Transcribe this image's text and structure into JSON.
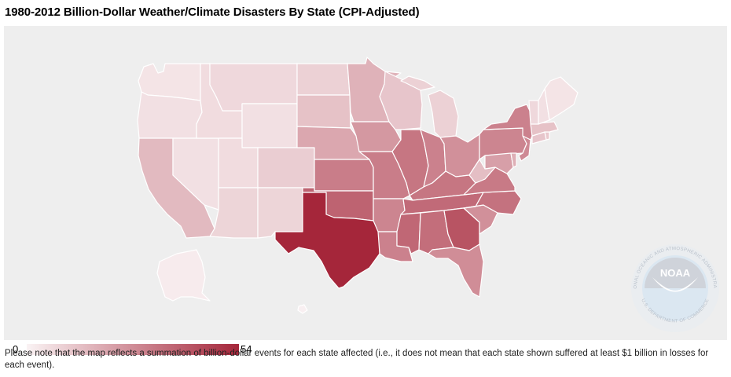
{
  "title": "1980-2012 Billion-Dollar Weather/Climate Disasters By State (CPI-Adjusted)",
  "legend": {
    "min": "0",
    "max": "54",
    "color_low": "#faf3f4",
    "color_high": "#a5263a"
  },
  "note": "Please note that the map reflects a summation of billion-dollar events for each state affected (i.e., it does not mean that each state shown suffered at least $1 billion in losses for each event).",
  "background_color": "#eeeeee",
  "seal": {
    "center_text": "NOAA",
    "ring_top": "NATIONAL OCEANIC AND ATMOSPHERIC ADMINISTRATION",
    "ring_bottom": "U.S. DEPARTMENT OF COMMERCE"
  },
  "states": {
    "WA": 4,
    "OR": 5,
    "CA": 15,
    "NV": 5,
    "ID": 6,
    "MT": 7,
    "WY": 5,
    "UT": 6,
    "AZ": 8,
    "CO": 10,
    "NM": 8,
    "ND": 9,
    "SD": 13,
    "NE": 20,
    "KS": 31,
    "OK": 38,
    "TX": 54,
    "MN": 17,
    "IA": 24,
    "MO": 31,
    "AR": 29,
    "LA": 30,
    "WI": 12,
    "IL": 33,
    "MS": 37,
    "MI": 9,
    "IN": 30,
    "KY": 33,
    "TN": 36,
    "AL": 35,
    "GA": 42,
    "FL": 27,
    "OH": 26,
    "WV": 14,
    "VA": 32,
    "NC": 34,
    "SC": 26,
    "PA": 29,
    "NY": 30,
    "NJ": 28,
    "DE": 18,
    "MD": 22,
    "CT": 12,
    "RI": 11,
    "MA": 13,
    "VT": 7,
    "NH": 5,
    "ME": 4,
    "AK": 2,
    "HI": 1
  }
}
